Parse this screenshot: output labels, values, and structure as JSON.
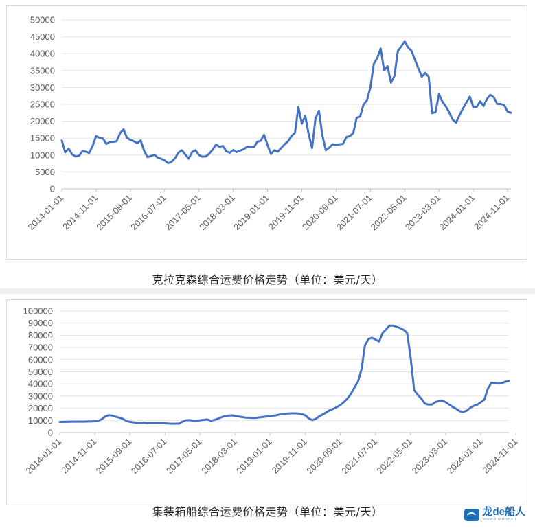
{
  "charts": [
    {
      "caption": "克拉克森综合运费价格走势（单位：美元/天）",
      "series_color": "#4472c4",
      "yticks": [
        "0",
        "5000",
        "10000",
        "15000",
        "20000",
        "25000",
        "30000",
        "35000",
        "40000",
        "45000",
        "50000"
      ],
      "xticks": [
        "2014-01-01",
        "2014-11-01",
        "2015-09-01",
        "2016-07-01",
        "2017-05-01",
        "2018-03-01",
        "2019-01-01",
        "2019-11-01",
        "2020-09-01",
        "2021-07-01",
        "2022-05-01",
        "2023-03-01",
        "2024-01-01",
        "2024-11-01"
      ]
    },
    {
      "caption": "集装箱船综合运费价格走势（单位：美元/天）",
      "series_color": "#4472c4",
      "yticks": [
        "0",
        "10000",
        "20000",
        "30000",
        "40000",
        "50000",
        "60000",
        "70000",
        "80000",
        "90000",
        "100000"
      ],
      "xticks": [
        "2014-01-01",
        "2014-11-01",
        "2015-09-01",
        "2016-07-01",
        "2017-05-01",
        "2018-03-01",
        "2019-01-01",
        "2019-11-01",
        "2020-09-01",
        "2021-07-01",
        "2022-05-01",
        "2023-03-01",
        "2024-01-01",
        "2024-11-01"
      ]
    }
  ],
  "watermark": {
    "brand": "龙de船人",
    "site": "www.lmarine.cn"
  },
  "chart_data": [
    {
      "type": "line",
      "ylim": [
        0,
        50000
      ],
      "x_start": "2014-01",
      "x_step": "month",
      "values": [
        14300,
        10800,
        11900,
        10200,
        9600,
        9800,
        11100,
        11000,
        10600,
        12700,
        15600,
        15100,
        14900,
        13300,
        13900,
        13900,
        14100,
        16500,
        17600,
        15100,
        14500,
        14100,
        13500,
        14300,
        11300,
        9400,
        9700,
        10100,
        9200,
        8900,
        8400,
        7600,
        8000,
        9000,
        10700,
        11400,
        10200,
        8900,
        10900,
        11400,
        10000,
        9500,
        9600,
        10400,
        11600,
        13100,
        12400,
        12700,
        11100,
        10700,
        11500,
        10900,
        11300,
        11700,
        12400,
        12300,
        12300,
        13900,
        14200,
        16000,
        13000,
        10300,
        11400,
        11000,
        12100,
        13200,
        14100,
        15600,
        16600,
        24200,
        19300,
        21600,
        16100,
        12100,
        20800,
        23100,
        15800,
        11400,
        12200,
        13200,
        12900,
        13200,
        13300,
        15300,
        15600,
        16500,
        21000,
        21400,
        24900,
        26200,
        30000,
        37000,
        38700,
        41500,
        35100,
        36300,
        31400,
        33400,
        40800,
        42100,
        43700,
        41800,
        40800,
        38200,
        35600,
        33200,
        34300,
        33200,
        22400,
        22700,
        28000,
        25800,
        24400,
        22600,
        20500,
        19600,
        21800,
        23800,
        25500,
        27300,
        24200,
        24200,
        25900,
        24500,
        26600,
        27800,
        27100,
        25100,
        25100,
        24800,
        22900,
        22500
      ]
    },
    {
      "type": "line",
      "ylim": [
        0,
        100000
      ],
      "x_start": "2014-01",
      "x_step": "month",
      "values": [
        8700,
        8800,
        8800,
        8900,
        9000,
        9000,
        9000,
        9000,
        9100,
        9100,
        9300,
        9800,
        11000,
        13200,
        14300,
        13900,
        13000,
        12200,
        11300,
        9500,
        8800,
        8400,
        8100,
        8000,
        8000,
        7800,
        7700,
        7700,
        7700,
        7700,
        7600,
        7400,
        7300,
        7300,
        7400,
        9000,
        10100,
        10200,
        9800,
        9700,
        10100,
        10400,
        10800,
        9800,
        10300,
        11300,
        12500,
        13500,
        13900,
        14200,
        13600,
        13200,
        12700,
        12300,
        12200,
        12000,
        12100,
        12500,
        12900,
        13200,
        13500,
        13900,
        14400,
        15000,
        15500,
        15700,
        15800,
        15800,
        15700,
        15200,
        14200,
        11500,
        10200,
        11300,
        13500,
        14900,
        16600,
        18500,
        19600,
        21000,
        22700,
        25200,
        28000,
        32000,
        37000,
        42000,
        52000,
        72000,
        77000,
        78000,
        76500,
        75000,
        82000,
        85000,
        88000,
        88000,
        87000,
        86000,
        84500,
        82000,
        62000,
        35000,
        31000,
        28000,
        24000,
        23000,
        23000,
        25000,
        26000,
        26200,
        25000,
        23000,
        21000,
        19500,
        17500,
        17000,
        18000,
        20500,
        22000,
        23000,
        25000,
        27000,
        36000,
        41000,
        40500,
        40200,
        40800,
        41800,
        42500
      ]
    }
  ]
}
